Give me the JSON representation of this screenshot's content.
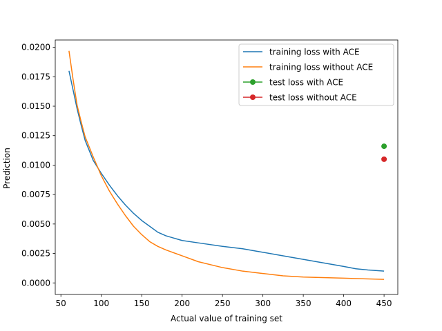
{
  "chart_data": {
    "type": "line",
    "title": "",
    "xlabel": "Actual value of training set",
    "ylabel": "Prediction",
    "xlim": [
      43,
      467
    ],
    "ylim": [
      -0.00098,
      0.02062
    ],
    "grid": false,
    "legend_position": "top-right",
    "xticks": [
      50,
      100,
      150,
      200,
      250,
      300,
      350,
      400,
      450
    ],
    "yticks": [
      0.0,
      0.0025,
      0.005,
      0.0075,
      0.01,
      0.0125,
      0.015,
      0.0175,
      0.02
    ],
    "xtick_labels": [
      "50",
      "100",
      "150",
      "200",
      "250",
      "300",
      "350",
      "400",
      "450"
    ],
    "ytick_labels": [
      "0.0000",
      "0.0025",
      "0.0050",
      "0.0075",
      "0.0100",
      "0.0125",
      "0.0150",
      "0.0175",
      "0.0200"
    ],
    "series": [
      {
        "name": "training loss with ACE",
        "kind": "line",
        "color": "#1f77b4",
        "points": [
          [
            60,
            0.018
          ],
          [
            65,
            0.0164
          ],
          [
            70,
            0.0148
          ],
          [
            75,
            0.0134
          ],
          [
            80,
            0.0121
          ],
          [
            90,
            0.0104
          ],
          [
            100,
            0.0093
          ],
          [
            110,
            0.0083
          ],
          [
            120,
            0.0074
          ],
          [
            130,
            0.0066
          ],
          [
            140,
            0.0059
          ],
          [
            150,
            0.0053
          ],
          [
            160,
            0.0048
          ],
          [
            170,
            0.0043
          ],
          [
            180,
            0.004
          ],
          [
            200,
            0.0036
          ],
          [
            220,
            0.0034
          ],
          [
            250,
            0.0031
          ],
          [
            275,
            0.0029
          ],
          [
            300,
            0.0026
          ],
          [
            325,
            0.0023
          ],
          [
            350,
            0.002
          ],
          [
            375,
            0.0017
          ],
          [
            400,
            0.0014
          ],
          [
            415,
            0.0012
          ],
          [
            430,
            0.0011
          ],
          [
            450,
            0.001
          ]
        ]
      },
      {
        "name": "training loss without ACE",
        "kind": "line",
        "color": "#ff7f0e",
        "points": [
          [
            60,
            0.0197
          ],
          [
            65,
            0.0173
          ],
          [
            70,
            0.0151
          ],
          [
            75,
            0.0137
          ],
          [
            80,
            0.0124
          ],
          [
            90,
            0.0107
          ],
          [
            100,
            0.0091
          ],
          [
            110,
            0.0078
          ],
          [
            120,
            0.0067
          ],
          [
            130,
            0.0057
          ],
          [
            140,
            0.0048
          ],
          [
            150,
            0.0041
          ],
          [
            160,
            0.0035
          ],
          [
            170,
            0.0031
          ],
          [
            180,
            0.0028
          ],
          [
            200,
            0.0023
          ],
          [
            220,
            0.0018
          ],
          [
            250,
            0.0013
          ],
          [
            275,
            0.001
          ],
          [
            300,
            0.0008
          ],
          [
            325,
            0.0006
          ],
          [
            350,
            0.0005
          ],
          [
            400,
            0.0004
          ],
          [
            450,
            0.0003
          ]
        ]
      },
      {
        "name": "test loss with ACE",
        "kind": "point",
        "color": "#2ca02c",
        "points": [
          [
            450,
            0.0116
          ]
        ]
      },
      {
        "name": "test loss without ACE",
        "kind": "point",
        "color": "#d62728",
        "points": [
          [
            450,
            0.0105
          ]
        ]
      }
    ]
  }
}
